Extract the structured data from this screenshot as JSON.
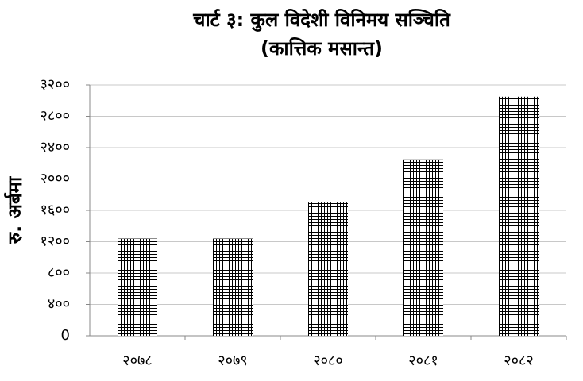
{
  "chart_data": {
    "type": "bar",
    "title": "चार्ट ३: कुल विदेशी विनिमय सञ्चिति",
    "subtitle": "(कात्तिक मसान्त)",
    "ylabel": "रु. अर्बमा",
    "categories": [
      "२०७८",
      "२०७९",
      "२०८०",
      "२०८१",
      "२०८२"
    ],
    "values": [
      1240,
      1240,
      1700,
      2250,
      3050
    ],
    "color": "#000000",
    "ylim": [
      0,
      3200
    ],
    "yticks": [
      {
        "value": 0,
        "label": "0"
      },
      {
        "value": 400,
        "label": "४००"
      },
      {
        "value": 800,
        "label": "८००"
      },
      {
        "value": 1200,
        "label": "१२००"
      },
      {
        "value": 1600,
        "label": "१६००"
      },
      {
        "value": 2000,
        "label": "२०००"
      },
      {
        "value": 2400,
        "label": "२४००"
      },
      {
        "value": 2800,
        "label": "२८००"
      },
      {
        "value": 3200,
        "label": "३२००"
      }
    ],
    "grid": true
  }
}
